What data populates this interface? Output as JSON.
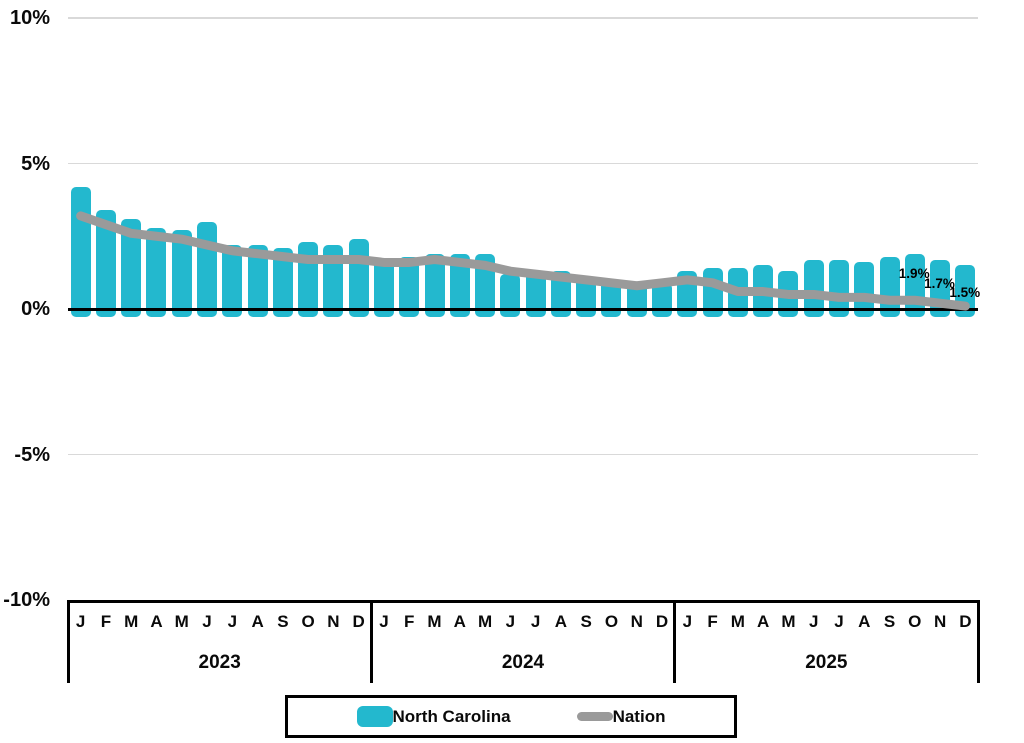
{
  "chart_data": {
    "type": "combo-bar-line",
    "title": "",
    "unit": "%",
    "y_axis": {
      "min": -10,
      "max": 10,
      "ticks": [
        {
          "label": "10%",
          "value": 10
        },
        {
          "label": "5%",
          "value": 5
        },
        {
          "label": "0%",
          "value": 0
        },
        {
          "label": "-5%",
          "value": -5
        },
        {
          "label": "-10%",
          "value": -10
        }
      ]
    },
    "x_axis": {
      "month_letters": [
        "J",
        "F",
        "M",
        "A",
        "M",
        "J",
        "J",
        "A",
        "S",
        "O",
        "N",
        "D"
      ],
      "years": [
        "2023",
        "2024",
        "2025"
      ]
    },
    "series": [
      {
        "name": "North Carolina",
        "type": "bar",
        "color": "#23B8CE",
        "values": [
          4.2,
          3.4,
          3.1,
          2.8,
          2.7,
          3.0,
          2.2,
          2.2,
          2.1,
          2.3,
          2.2,
          2.4,
          1.7,
          1.8,
          1.9,
          1.9,
          1.9,
          1.2,
          1.3,
          1.3,
          1.1,
          1.0,
          0.9,
          0.9,
          1.3,
          1.4,
          1.4,
          1.5,
          1.3,
          1.7,
          1.7,
          1.6,
          1.8,
          1.9,
          1.7,
          1.5
        ]
      },
      {
        "name": "Nation",
        "type": "line",
        "color": "#9A9A9A",
        "values": [
          3.2,
          2.9,
          2.6,
          2.5,
          2.4,
          2.2,
          2.0,
          1.9,
          1.8,
          1.7,
          1.7,
          1.7,
          1.6,
          1.6,
          1.7,
          1.6,
          1.5,
          1.3,
          1.2,
          1.1,
          1.0,
          0.9,
          0.8,
          0.9,
          1.0,
          0.9,
          0.6,
          0.6,
          0.5,
          0.5,
          0.4,
          0.4,
          0.3,
          0.3,
          0.2,
          0.1
        ]
      }
    ],
    "point_labels": [
      {
        "text": "1.9%",
        "month_index": 33
      },
      {
        "text": "1.7%",
        "month_index": 34
      },
      {
        "text": "1.5%",
        "month_index": 35
      }
    ],
    "grid_color": "#D9D9D9",
    "zero_line_color": "#000000",
    "legend_position": "bottom"
  }
}
